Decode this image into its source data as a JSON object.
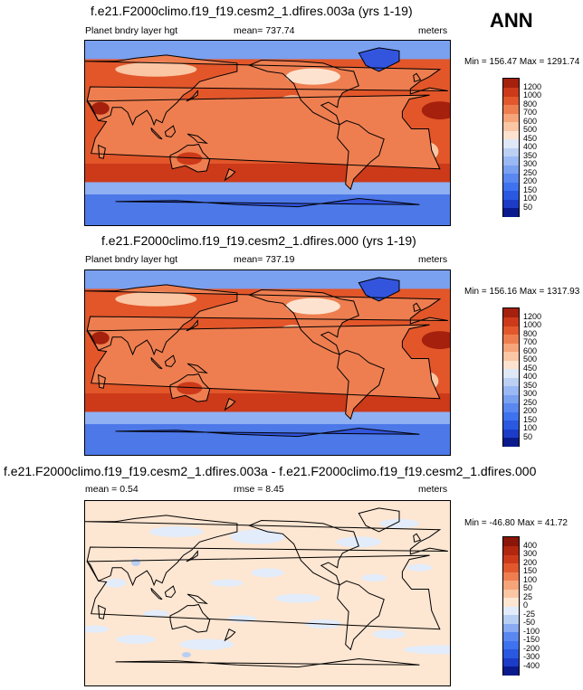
{
  "season": "ANN",
  "panels": [
    {
      "title": "f.e21.F2000climo.f19_f19.cesm2_1.dfires.003a (yrs 1-19)",
      "left_label": "Planet bndry layer hgt",
      "center_label": "mean= 737.74",
      "right_label": "meters",
      "minmax": "Min = 156.47 Max = 1291.74"
    },
    {
      "title": "f.e21.F2000climo.f19_f19.cesm2_1.dfires.000 (yrs 1-19)",
      "left_label": "Planet bndry layer hgt",
      "center_label": "mean= 737.19",
      "right_label": "meters",
      "minmax": "Min = 156.16 Max = 1317.93"
    },
    {
      "title": "f.e21.F2000climo.f19_f19.cesm2_1.dfires.003a - f.e21.F2000climo.f19_f19.cesm2_1.dfires.000",
      "left_label": "mean =   0.54",
      "center_label": "rmse =   8.45",
      "right_label": "meters",
      "minmax": "Min = -46.80 Max = 41.72"
    }
  ],
  "chart_data": [
    {
      "type": "heatmap",
      "title": "f.e21.F2000climo.f19_f19.cesm2_1.dfires.003a (yrs 1-19)",
      "variable": "Planet bndry layer hgt",
      "units": "meters",
      "mean": 737.74,
      "min": 156.47,
      "max": 1291.74,
      "colorbar_levels": [
        "50",
        "100",
        "150",
        "200",
        "250",
        "300",
        "350",
        "400",
        "450",
        "500",
        "600",
        "700",
        "800",
        "1000",
        "1200"
      ],
      "colorbar_colors": [
        "#0a1a8c",
        "#1c3cc8",
        "#2a58e0",
        "#3f72ee",
        "#5a88f0",
        "#7aa0f0",
        "#9ab8f4",
        "#bcd0f4",
        "#dfe8f6",
        "#fde3cf",
        "#fbc6a4",
        "#f6a47a",
        "#ee7e50",
        "#e2582c",
        "#cc3a1a",
        "#a5200d"
      ]
    },
    {
      "type": "heatmap",
      "title": "f.e21.F2000climo.f19_f19.cesm2_1.dfires.000 (yrs 1-19)",
      "variable": "Planet bndry layer hgt",
      "units": "meters",
      "mean": 737.19,
      "min": 156.16,
      "max": 1317.93,
      "colorbar_levels": [
        "50",
        "100",
        "150",
        "200",
        "250",
        "300",
        "350",
        "400",
        "450",
        "500",
        "600",
        "700",
        "800",
        "1000",
        "1200"
      ],
      "colorbar_colors": [
        "#0a1a8c",
        "#1c3cc8",
        "#2a58e0",
        "#3f72ee",
        "#5a88f0",
        "#7aa0f0",
        "#9ab8f4",
        "#bcd0f4",
        "#dfe8f6",
        "#fde3cf",
        "#fbc6a4",
        "#f6a47a",
        "#ee7e50",
        "#e2582c",
        "#cc3a1a",
        "#a5200d"
      ]
    },
    {
      "type": "heatmap",
      "title": "f.e21.F2000climo.f19_f19.cesm2_1.dfires.003a - f.e21.F2000climo.f19_f19.cesm2_1.dfires.000",
      "units": "meters",
      "mean": 0.54,
      "rmse": 8.45,
      "min": -46.8,
      "max": 41.72,
      "colorbar_levels": [
        "-400",
        "-300",
        "-200",
        "-150",
        "-100",
        "-50",
        "-25",
        "0",
        "25",
        "50",
        "100",
        "150",
        "200",
        "300",
        "400"
      ],
      "colorbar_colors": [
        "#0a1a8c",
        "#1c3cc8",
        "#2a58e0",
        "#3f72ee",
        "#5a88f0",
        "#8aaaf2",
        "#b8cff4",
        "#e2ecfa",
        "#fde6d2",
        "#fbc6a4",
        "#f6a47a",
        "#ee7e50",
        "#e2582c",
        "#cc3a1a",
        "#b0260f",
        "#8a1508"
      ]
    }
  ]
}
